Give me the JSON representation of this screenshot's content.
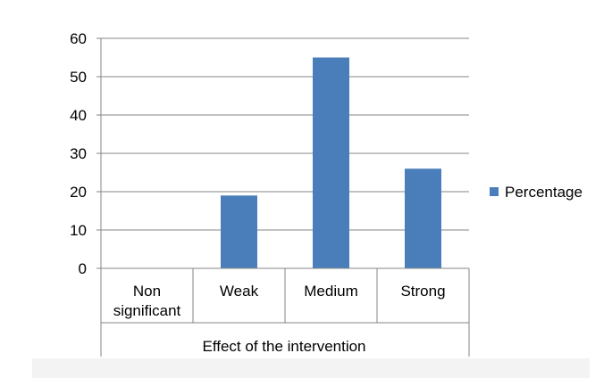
{
  "chart_data": {
    "type": "bar",
    "categories": [
      [
        "Non",
        "significant"
      ],
      [
        "Weak"
      ],
      [
        "Medium"
      ],
      [
        "Strong"
      ]
    ],
    "series": [
      {
        "name": "Percentage",
        "values": [
          0,
          19,
          55,
          26
        ],
        "color": "#4a7ebb"
      }
    ],
    "title": "",
    "xlabel": "Effect of the intervention",
    "ylabel": "",
    "ylim": [
      0,
      60
    ],
    "yticks": [
      0,
      10,
      20,
      30,
      40,
      50,
      60
    ],
    "grid": true,
    "legend_position": "right"
  }
}
